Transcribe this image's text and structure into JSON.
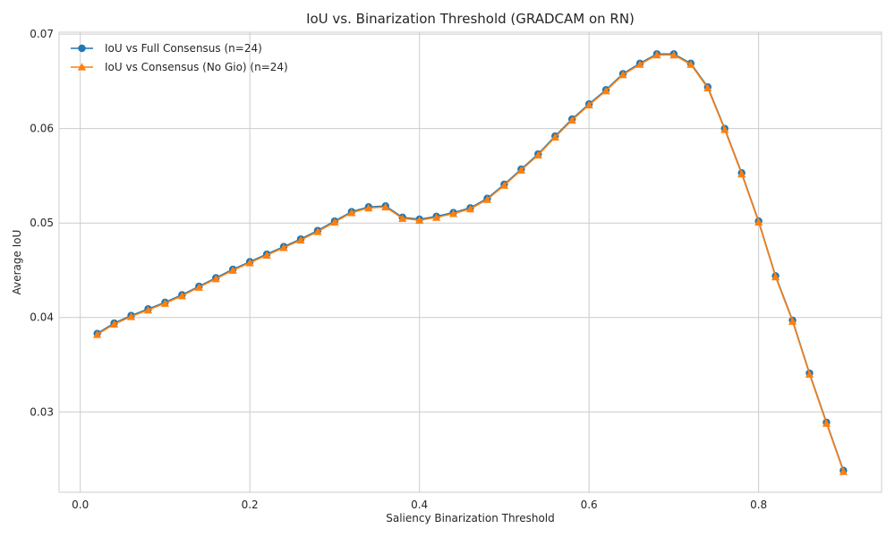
{
  "chart_data": {
    "type": "line",
    "title": "IoU vs. Binarization Threshold (GRADCAM on RN)",
    "xlabel": "Saliency Binarization Threshold",
    "ylabel": "Average IoU",
    "xlim": [
      -0.025,
      0.945
    ],
    "ylim": [
      0.0215,
      0.0702
    ],
    "xticks": [
      0.0,
      0.2,
      0.4,
      0.6,
      0.8
    ],
    "xtick_labels": [
      "0.0",
      "0.2",
      "0.4",
      "0.6",
      "0.8"
    ],
    "yticks": [
      0.03,
      0.04,
      0.05,
      0.06,
      0.07
    ],
    "ytick_labels": [
      "0.03",
      "0.04",
      "0.05",
      "0.06",
      "0.07"
    ],
    "grid": true,
    "legend_position": "top-left",
    "x": [
      0.02,
      0.04,
      0.06,
      0.08,
      0.1,
      0.12,
      0.14,
      0.16,
      0.18,
      0.2,
      0.22,
      0.24,
      0.26,
      0.28,
      0.3,
      0.32,
      0.34,
      0.36,
      0.38,
      0.4,
      0.42,
      0.44,
      0.46,
      0.48,
      0.5,
      0.52,
      0.54,
      0.56,
      0.58,
      0.6,
      0.62,
      0.64,
      0.66,
      0.68,
      0.7,
      0.72,
      0.74,
      0.76,
      0.78,
      0.8,
      0.82,
      0.84,
      0.86,
      0.88,
      0.9
    ],
    "series": [
      {
        "name": "IoU vs Full Consensus (n=24)",
        "color": "#1f77b4",
        "marker": "circle",
        "values": [
          0.0383,
          0.0394,
          0.0402,
          0.0409,
          0.0416,
          0.0424,
          0.0433,
          0.0442,
          0.0451,
          0.0459,
          0.0467,
          0.0475,
          0.0483,
          0.0492,
          0.0502,
          0.0512,
          0.0517,
          0.0518,
          0.0506,
          0.0504,
          0.0507,
          0.0511,
          0.0516,
          0.0526,
          0.0541,
          0.0557,
          0.0573,
          0.0592,
          0.061,
          0.0626,
          0.0641,
          0.0658,
          0.0669,
          0.0679,
          0.0679,
          0.0669,
          0.0644,
          0.06,
          0.0553,
          0.0502,
          0.0444,
          0.0397,
          0.0341,
          0.0289,
          0.0238
        ]
      },
      {
        "name": "IoU vs Consensus (No Gio) (n=24)",
        "color": "#ff7f0e",
        "marker": "triangle-up",
        "values": [
          0.0382,
          0.0393,
          0.0401,
          0.0408,
          0.0415,
          0.0423,
          0.0432,
          0.0441,
          0.045,
          0.0458,
          0.0466,
          0.0474,
          0.0482,
          0.0491,
          0.0501,
          0.0511,
          0.0516,
          0.0517,
          0.0505,
          0.0503,
          0.0506,
          0.051,
          0.0515,
          0.0525,
          0.054,
          0.0556,
          0.0572,
          0.0591,
          0.0609,
          0.0625,
          0.064,
          0.0657,
          0.0668,
          0.0678,
          0.0678,
          0.0668,
          0.0643,
          0.0599,
          0.0552,
          0.0501,
          0.0443,
          0.0396,
          0.034,
          0.0288,
          0.0237
        ]
      }
    ]
  }
}
